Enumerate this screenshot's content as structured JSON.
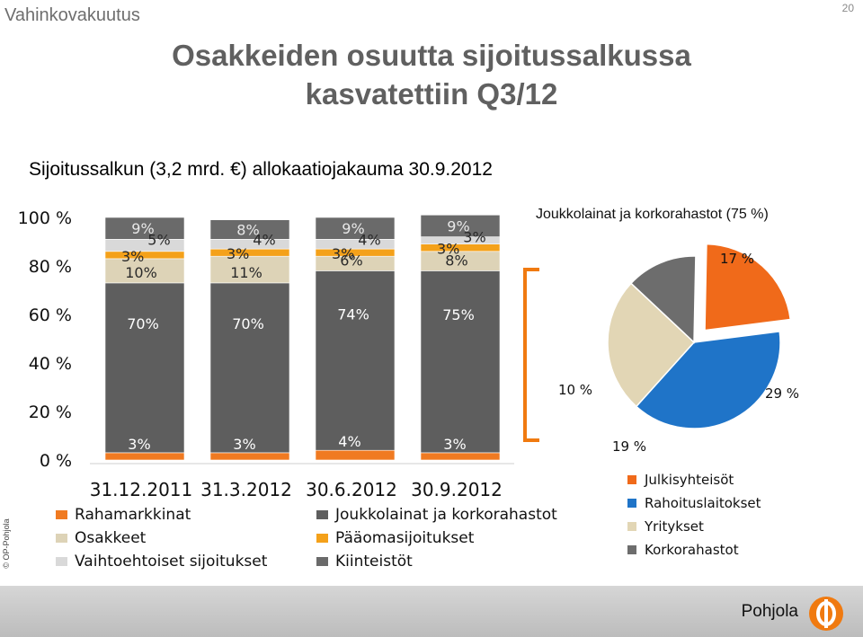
{
  "header": {
    "section": "Vahinkovakuutus",
    "page_number": "20",
    "title_line1": "Osakkeiden osuutta sijoitussalkussa",
    "title_line2": "kasvatettiin Q3/12",
    "subtitle": "Sijoitussalkun (3,2 mrd. €) allokaatiojakauma 30.9.2012"
  },
  "copyright": "© OP-Pohjola",
  "brand": {
    "name": "Pohjola",
    "colors": {
      "orange": "#f07a10",
      "white": "#ffffff"
    }
  },
  "chart_data": [
    {
      "type": "bar",
      "stacked": true,
      "categories": [
        "31.12.2011",
        "31.3.2012",
        "30.6.2012",
        "30.9.2012"
      ],
      "y_ticks": [
        "0 %",
        "20 %",
        "40 %",
        "60 %",
        "80 %",
        "100 %"
      ],
      "ylim": [
        0,
        100
      ],
      "series": [
        {
          "name": "Rahamarkkinat",
          "values": [
            3,
            3,
            4,
            3
          ],
          "color": "#f07a21"
        },
        {
          "name": "Joukkolainat ja korkorahastot",
          "values": [
            70,
            70,
            74,
            75
          ],
          "color": "#5e5e5e"
        },
        {
          "name": "Osakkeet",
          "values": [
            10,
            11,
            6,
            8
          ],
          "color": "#ddd3b7"
        },
        {
          "name": "Pääomasijoitukset",
          "values": [
            3,
            3,
            3,
            3
          ],
          "color": "#f4a11a"
        },
        {
          "name": "Vaihtoehtoiset sijoitukset",
          "values": [
            5,
            4,
            4,
            3
          ],
          "color": "#d9d9d9"
        },
        {
          "name": "Kiinteistöt",
          "values": [
            9,
            8,
            9,
            9
          ],
          "color": "#6a6a6a"
        }
      ],
      "legend_order": [
        "Rahamarkkinat",
        "Joukkolainat ja korkorahastot",
        "Osakkeet",
        "Pääomasijoitukset",
        "Vaihtoehtoiset sijoitukset",
        "Kiinteistöt"
      ],
      "legend_position": "bottom",
      "grid": false
    },
    {
      "type": "pie",
      "title": "Joukkolainat ja korkorahastot (75 %)",
      "slices": [
        {
          "name": "Julkisyhteisöt",
          "label": "17 %",
          "value": 17,
          "color": "#f06a1a"
        },
        {
          "name": "Rahoituslaitokset",
          "label": "29 %",
          "value": 29,
          "color": "#1f74c8"
        },
        {
          "name": "Yritykset",
          "label": "19 %",
          "value": 19,
          "color": "#e2d6b5"
        },
        {
          "name": "Korkorahastot",
          "label": "10 %",
          "value": 10,
          "color": "#6d6d6d"
        }
      ],
      "legend_position": "bottom"
    }
  ]
}
